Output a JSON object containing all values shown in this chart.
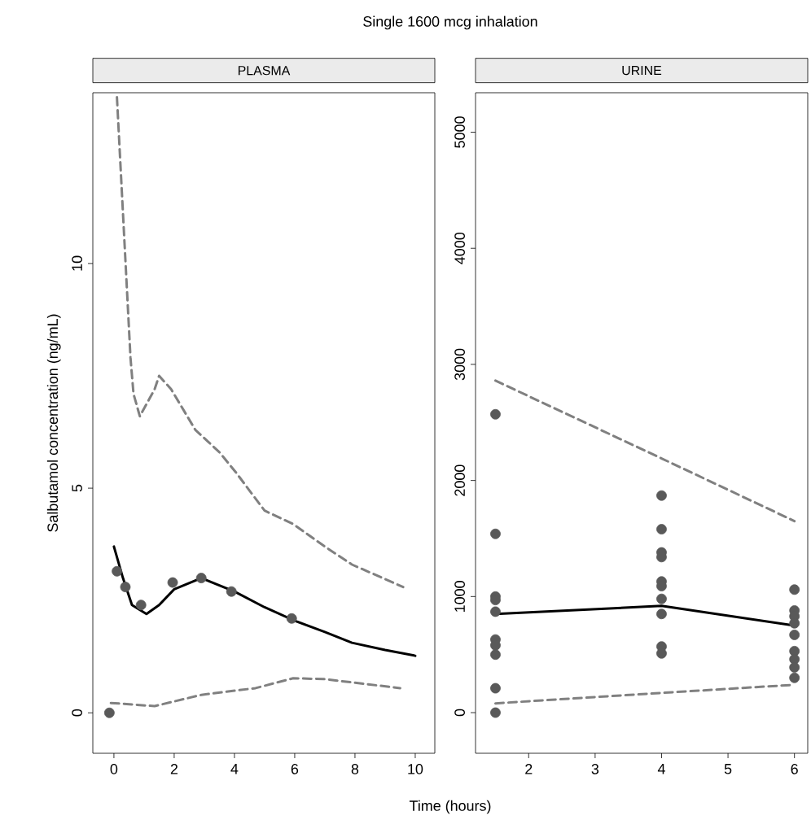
{
  "chart_data": [
    {
      "type": "line",
      "title": "PLASMA",
      "ylabel": "Salbutamol concentration (ng/mL)",
      "xlabel": "Time (hours)",
      "annotations": [
        "Single 1600 mcg inhalation"
      ],
      "xlim": [
        -0.7,
        10.65
      ],
      "ylim": [
        -0.9,
        13.8
      ],
      "xticks": [
        0,
        2,
        4,
        6,
        8,
        10
      ],
      "yticks": [
        0,
        5,
        10
      ],
      "series": [
        {
          "color": "#808080",
          "line_style": "dashed",
          "marker": "none",
          "x": [
            0.1,
            0.55,
            0.65,
            0.86,
            1.35,
            1.5,
            1.9,
            2.7,
            3.5,
            4.05,
            5.0,
            5.95,
            7.0,
            7.9,
            9.6
          ],
          "values": [
            13.7,
            7.9,
            7.1,
            6.6,
            7.2,
            7.5,
            7.2,
            6.3,
            5.8,
            5.35,
            4.5,
            4.2,
            3.7,
            3.3,
            2.8
          ]
        },
        {
          "color": "#808080",
          "line_style": "dashed",
          "marker": "none",
          "x": [
            -0.1,
            1.35,
            2.9,
            4.7,
            5.95,
            7.0,
            9.5
          ],
          "values": [
            0.22,
            0.15,
            0.4,
            0.55,
            0.77,
            0.75,
            0.55
          ]
        },
        {
          "type": "scatter",
          "color": "#595959",
          "marker": "circle",
          "x": [
            -0.15,
            0.1,
            0.38,
            0.9,
            1.95,
            2.9,
            3.9,
            5.9
          ],
          "values": [
            0,
            3.15,
            2.8,
            2.4,
            2.9,
            3.0,
            2.7,
            2.1
          ]
        },
        {
          "color": "#000000",
          "line_style": "solid",
          "marker": "none",
          "x": [
            0,
            0.3,
            0.6,
            1.08,
            1.5,
            2,
            2.9,
            4,
            5,
            6,
            7,
            7.9,
            9,
            10
          ],
          "values": [
            3.7,
            3.0,
            2.4,
            2.2,
            2.4,
            2.75,
            3.0,
            2.7,
            2.35,
            2.05,
            1.8,
            1.56,
            1.4,
            1.27
          ]
        }
      ]
    },
    {
      "type": "line",
      "title": "URINE",
      "xlim": [
        1.2,
        6.2
      ],
      "ylim": [
        -350,
        5340
      ],
      "xticks": [
        2,
        3,
        4,
        5,
        6
      ],
      "yticks": [
        0,
        1000,
        2000,
        3000,
        4000,
        5000
      ],
      "series": [
        {
          "color": "#808080",
          "line_style": "dashed",
          "marker": "none",
          "x": [
            1.5,
            4,
            6
          ],
          "values": [
            2860,
            2190,
            1650
          ]
        },
        {
          "color": "#808080",
          "line_style": "dashed",
          "marker": "none",
          "x": [
            1.5,
            4,
            6
          ],
          "values": [
            80,
            170,
            240
          ]
        },
        {
          "type": "scatter",
          "color": "#595959",
          "marker": "circle",
          "x": [
            1.5,
            1.5,
            1.5,
            1.5,
            1.5,
            1.5,
            1.5,
            1.5,
            1.5,
            1.5,
            4,
            4,
            4,
            4,
            4,
            4,
            4,
            4,
            4,
            4,
            6,
            6,
            6,
            6,
            6,
            6,
            6,
            6,
            6
          ],
          "values": [
            2570,
            1540,
            1000,
            970,
            870,
            630,
            580,
            500,
            210,
            0,
            1870,
            1580,
            1380,
            1340,
            1130,
            1090,
            980,
            850,
            570,
            510,
            1060,
            880,
            830,
            770,
            670,
            530,
            460,
            390,
            300
          ]
        },
        {
          "color": "#000000",
          "line_style": "solid",
          "marker": "none",
          "x": [
            1.5,
            4,
            6
          ],
          "values": [
            850,
            920,
            750
          ]
        }
      ]
    }
  ]
}
